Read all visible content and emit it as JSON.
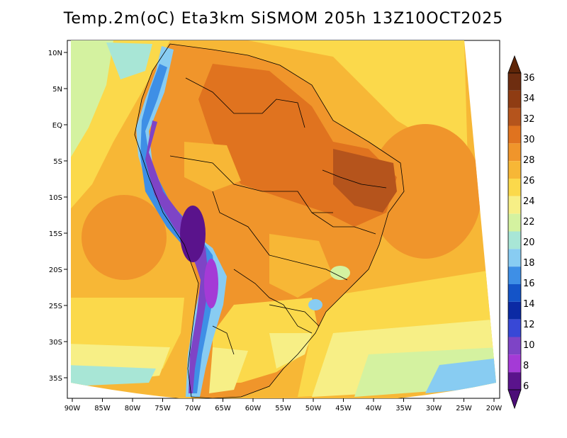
{
  "title": "Temp.2m(oC) Eta3km SiSMOM 205h 13Z10OCT2025",
  "map": {
    "lon_ticks": [
      "90W",
      "85W",
      "80W",
      "75W",
      "70W",
      "65W",
      "60W",
      "55W",
      "50W",
      "45W",
      "40W",
      "35W",
      "30W",
      "25W",
      "20W"
    ],
    "lat_ticks": [
      "10N",
      "5N",
      "EQ",
      "5S",
      "10S",
      "15S",
      "20S",
      "25S",
      "30S",
      "35S"
    ]
  },
  "colorbar": {
    "labels": [
      "36",
      "34",
      "32",
      "30",
      "28",
      "26",
      "24",
      "22",
      "20",
      "18",
      "16",
      "14",
      "12",
      "10",
      "8",
      "6"
    ],
    "colors": [
      "#6e2d10",
      "#8f3c13",
      "#b5541c",
      "#e0731f",
      "#f0952b",
      "#f7b736",
      "#fbd94b",
      "#f7ef86",
      "#d4f2a0",
      "#a8e6d6",
      "#88ccf2",
      "#3e8fe6",
      "#1454c8",
      "#0b2aa4",
      "#3848d6",
      "#7e44c6",
      "#a43ad6",
      "#5a138c"
    ],
    "top_color": "#5e2508",
    "bottom_color": "#4c0e78"
  }
}
